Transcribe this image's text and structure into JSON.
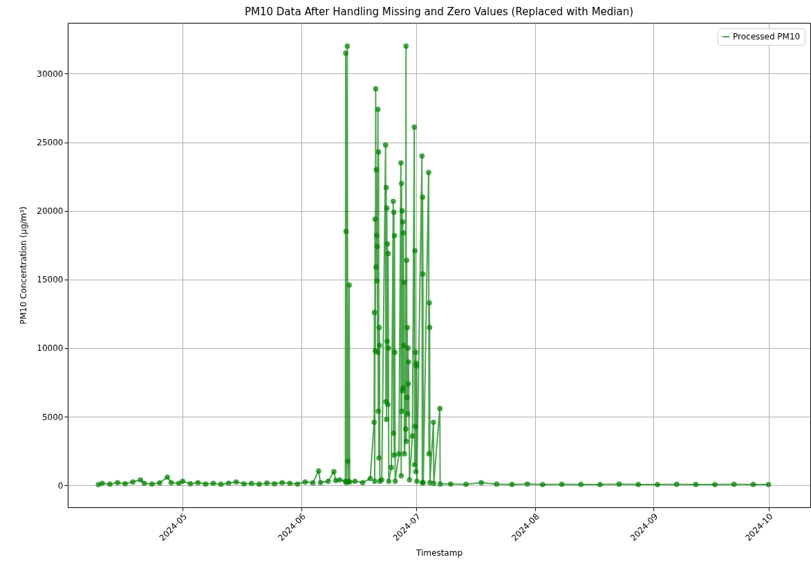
{
  "chart_data": {
    "type": "line",
    "title": "PM10 Data After Handling Missing and Zero Values (Replaced with Median)",
    "xlabel": "Timestamp",
    "ylabel": "PM10 Concentration (µg/m³)",
    "xlim": [
      "2024-04-01",
      "2024-10-11T22:00"
    ],
    "xticks": [
      "2024-05",
      "2024-06",
      "2024-07",
      "2024-08",
      "2024-09",
      "2024-10"
    ],
    "ylim": [
      -1600,
      33700
    ],
    "yticks": [
      0,
      5000,
      10000,
      15000,
      20000,
      25000,
      30000
    ],
    "grid": true,
    "legend": "top right",
    "marker": "circle",
    "line_style": "solid",
    "x": [
      "2024-04-09",
      "2024-04-10",
      "2024-04-12",
      "2024-04-14",
      "2024-04-16",
      "2024-04-18",
      "2024-04-20",
      "2024-04-21",
      "2024-04-23",
      "2024-04-25",
      "2024-04-27",
      "2024-04-28",
      "2024-04-30",
      "2024-05-01",
      "2024-05-03",
      "2024-05-05",
      "2024-05-07",
      "2024-05-09",
      "2024-05-11",
      "2024-05-13",
      "2024-05-15",
      "2024-05-17",
      "2024-05-19",
      "2024-05-21",
      "2024-05-23",
      "2024-05-25",
      "2024-05-27",
      "2024-05-29",
      "2024-05-31",
      "2024-06-02",
      "2024-06-04",
      "2024-06-05T12:00",
      "2024-06-06",
      "2024-06-08",
      "2024-06-09T12:00",
      "2024-06-10",
      "2024-06-11",
      "2024-06-12T12:00",
      "2024-06-12T14:00",
      "2024-06-12T16:00",
      "2024-06-12T18:00",
      "2024-06-13T00:00",
      "2024-06-13T03:00",
      "2024-06-13T06:00",
      "2024-06-13T12:00",
      "2024-06-13T15:00",
      "2024-06-15",
      "2024-06-17",
      "2024-06-19",
      "2024-06-20T00:00",
      "2024-06-20T02:00",
      "2024-06-20T04:00",
      "2024-06-20T06:00",
      "2024-06-20T08:00",
      "2024-06-20T10:00",
      "2024-06-20T12:00",
      "2024-06-20T14:00",
      "2024-06-20T16:00",
      "2024-06-20T18:00",
      "2024-06-20T20:00",
      "2024-06-20T22:00",
      "2024-06-21T00:00",
      "2024-06-21T02:00",
      "2024-06-21T04:00",
      "2024-06-21T06:00",
      "2024-06-21T08:00",
      "2024-06-21T10:00",
      "2024-06-21T12:00",
      "2024-06-22",
      "2024-06-23T00:00",
      "2024-06-23T02:00",
      "2024-06-23T04:00",
      "2024-06-23T06:00",
      "2024-06-23T08:00",
      "2024-06-23T10:00",
      "2024-06-23T12:00",
      "2024-06-23T14:00",
      "2024-06-23T16:00",
      "2024-06-23T18:00",
      "2024-06-23T20:00",
      "2024-06-24T12:00",
      "2024-06-25T00:00",
      "2024-06-25T02:00",
      "2024-06-25T04:00",
      "2024-06-25T06:00",
      "2024-06-25T08:00",
      "2024-06-25T10:00",
      "2024-06-25T12:00",
      "2024-06-26T12:00",
      "2024-06-27T00:00",
      "2024-06-27T02:00",
      "2024-06-27T04:00",
      "2024-06-27T06:00",
      "2024-06-27T08:00",
      "2024-06-27T10:00",
      "2024-06-27T12:00",
      "2024-06-27T14:00",
      "2024-06-27T16:00",
      "2024-06-27T18:00",
      "2024-06-27T20:00",
      "2024-06-27T22:00",
      "2024-06-28T06:00",
      "2024-06-28T08:00",
      "2024-06-28T10:00",
      "2024-06-28T12:00",
      "2024-06-28T14:00",
      "2024-06-28T16:00",
      "2024-06-28T18:00",
      "2024-06-28T20:00",
      "2024-06-28T22:00",
      "2024-06-29T00:00",
      "2024-06-29T06:00",
      "2024-06-30T00:00",
      "2024-06-30T12:00",
      "2024-06-30T14:00",
      "2024-06-30T16:00",
      "2024-06-30T18:00",
      "2024-06-30T20:00",
      "2024-06-30T22:00",
      "2024-07-01T00:00",
      "2024-07-01T02:00",
      "2024-07-01T04:00",
      "2024-07-02T12:00",
      "2024-07-02T14:00",
      "2024-07-02T16:00",
      "2024-07-02T18:00",
      "2024-07-02T20:00",
      "2024-07-04T06:00",
      "2024-07-04T08:00",
      "2024-07-04T10:00",
      "2024-07-04T12:00",
      "2024-07-04T14:00",
      "2024-07-05T12:00",
      "2024-07-05T14:00",
      "2024-07-07T04:00",
      "2024-07-07T06:00",
      "2024-07-10",
      "2024-07-14",
      "2024-07-18",
      "2024-07-22",
      "2024-07-26",
      "2024-07-30",
      "2024-08-03",
      "2024-08-08",
      "2024-08-13",
      "2024-08-18",
      "2024-08-23",
      "2024-08-28",
      "2024-09-02",
      "2024-09-07",
      "2024-09-12",
      "2024-09-17",
      "2024-09-22",
      "2024-09-27",
      "2024-10-01"
    ],
    "series": [
      {
        "name": "Processed PM10",
        "color": "#008000",
        "values": [
          60,
          150,
          90,
          200,
          120,
          250,
          400,
          150,
          100,
          180,
          600,
          200,
          150,
          300,
          120,
          200,
          100,
          150,
          80,
          160,
          250,
          110,
          140,
          90,
          170,
          120,
          200,
          150,
          100,
          250,
          180,
          1050,
          200,
          300,
          1000,
          350,
          400,
          300,
          31500,
          18500,
          200,
          32000,
          1760,
          300,
          14600,
          250,
          300,
          200,
          500,
          4600,
          12600,
          300,
          19400,
          9800,
          28900,
          15900,
          23000,
          18200,
          14900,
          17400,
          9700,
          27400,
          5400,
          24300,
          2000,
          11500,
          10200,
          300,
          400,
          24800,
          6100,
          21700,
          4800,
          20200,
          10500,
          17600,
          5900,
          16900,
          10000,
          300,
          1300,
          20700,
          3800,
          19900,
          2200,
          18200,
          9700,
          300,
          2300,
          23500,
          700,
          22000,
          5400,
          20000,
          6900,
          19200,
          7100,
          18400,
          10200,
          14800,
          2300,
          4100,
          32000,
          3200,
          16400,
          6400,
          11500,
          5200,
          10000,
          7400,
          9000,
          400,
          3600,
          26100,
          1500,
          17100,
          4300,
          9700,
          1000,
          8900,
          8700,
          300,
          24000,
          200,
          21000,
          15400,
          200,
          22800,
          2300,
          13300,
          11500,
          200,
          4600,
          150,
          5600,
          100,
          100,
          80,
          200,
          90,
          70,
          100,
          60,
          80,
          70,
          60,
          90,
          70,
          60,
          80,
          70,
          60,
          80,
          70,
          60
        ]
      }
    ]
  }
}
